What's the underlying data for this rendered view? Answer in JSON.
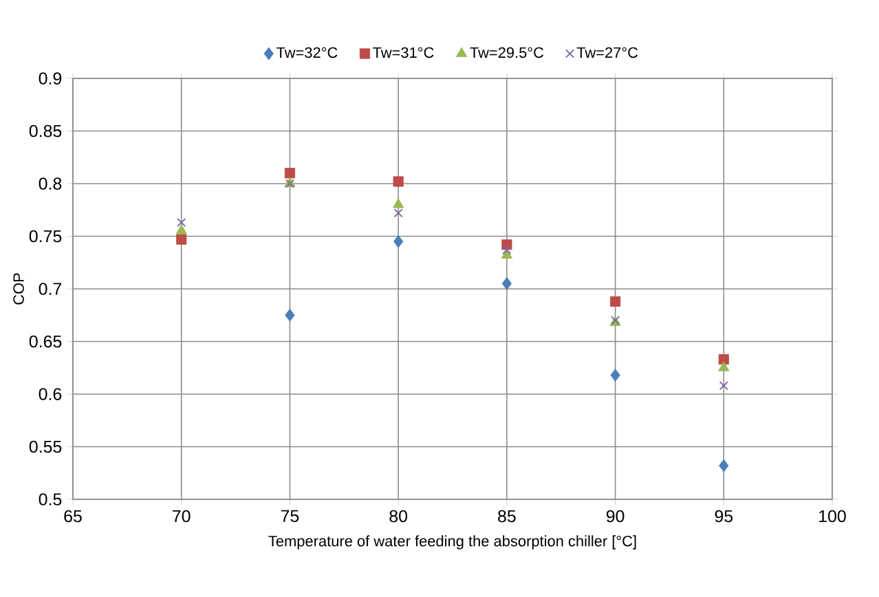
{
  "chart_data": {
    "type": "scatter",
    "xlabel": "Temperature of water feeding the absorption chiller [°C]",
    "ylabel": "COP",
    "x": [
      70,
      75,
      80,
      85,
      90,
      95
    ],
    "series": [
      {
        "name": "Tw=32°C",
        "color": "#4a7ebb",
        "marker": "diamond",
        "values": [
          null,
          0.675,
          0.745,
          0.705,
          0.618,
          0.532
        ]
      },
      {
        "name": "Tw=31°C",
        "color": "#be4b48",
        "marker": "square",
        "values": [
          0.747,
          0.81,
          0.802,
          0.742,
          0.688,
          0.633
        ]
      },
      {
        "name": "Tw=29.5°C",
        "color": "#98b954",
        "marker": "triangle",
        "values": [
          0.755,
          0.8,
          0.78,
          0.732,
          0.668,
          0.625
        ]
      },
      {
        "name": "Tw=27°C",
        "color": "#7d60a0",
        "marker": "cross",
        "values": [
          0.763,
          0.8,
          0.772,
          0.737,
          0.67,
          0.608
        ]
      }
    ],
    "xlim": [
      65,
      100
    ],
    "xticks": [
      65,
      70,
      75,
      80,
      85,
      90,
      95,
      100
    ],
    "ylim": [
      0.5,
      0.9
    ],
    "yticks": [
      0.5,
      0.55,
      0.6,
      0.65,
      0.7,
      0.75,
      0.8,
      0.85,
      0.9
    ],
    "grid": true,
    "legend": "top"
  }
}
